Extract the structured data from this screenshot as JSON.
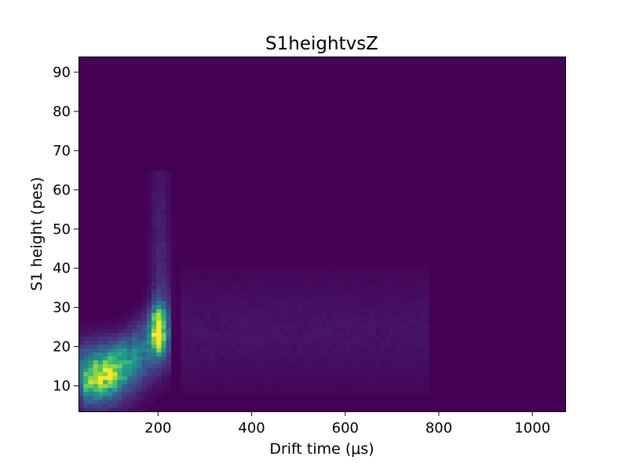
{
  "chart_data": {
    "type": "heatmap",
    "title": "S1heightvsZ",
    "xlabel": "Drift time (μs)",
    "ylabel": "S1 height (pes)",
    "xlim": [
      30,
      1070
    ],
    "ylim": [
      3.5,
      94
    ],
    "x_ticks": [
      200,
      400,
      600,
      800,
      1000
    ],
    "y_ticks": [
      10,
      20,
      30,
      40,
      50,
      60,
      70,
      80,
      90
    ],
    "x_tick_labels": [
      "200",
      "400",
      "600",
      "800",
      "1000"
    ],
    "y_tick_labels": [
      "10",
      "20",
      "30",
      "40",
      "50",
      "60",
      "70",
      "80",
      "90"
    ],
    "bins": {
      "nx": 100,
      "ny": 90
    },
    "colormap": [
      "#440154",
      "#482878",
      "#3e4989",
      "#31688e",
      "#26828e",
      "#1f9e89",
      "#35b779",
      "#6ece58",
      "#b5de2b",
      "#fde725"
    ],
    "density_components": [
      {
        "name": "low-drift cluster",
        "x_center": 75,
        "y_center": 13,
        "x_spread": 45,
        "y_spread": 5,
        "relative_density": 0.62
      },
      {
        "name": "diagonal band",
        "x_from": 40,
        "y_from": 10,
        "x_to": 230,
        "y_to": 24,
        "relative_density": 0.38
      },
      {
        "name": "cathode peak",
        "x_center": 200,
        "y_center": 24,
        "x_spread": 10,
        "y_spread": 4,
        "relative_density": 1.0
      },
      {
        "name": "vertical streak",
        "x_center": 205,
        "y_from": 28,
        "y_to": 65,
        "relative_density": 0.14
      },
      {
        "name": "diffuse tail",
        "x_from": 250,
        "x_to": 780,
        "y_center": 24,
        "relative_density": 0.05
      }
    ]
  }
}
